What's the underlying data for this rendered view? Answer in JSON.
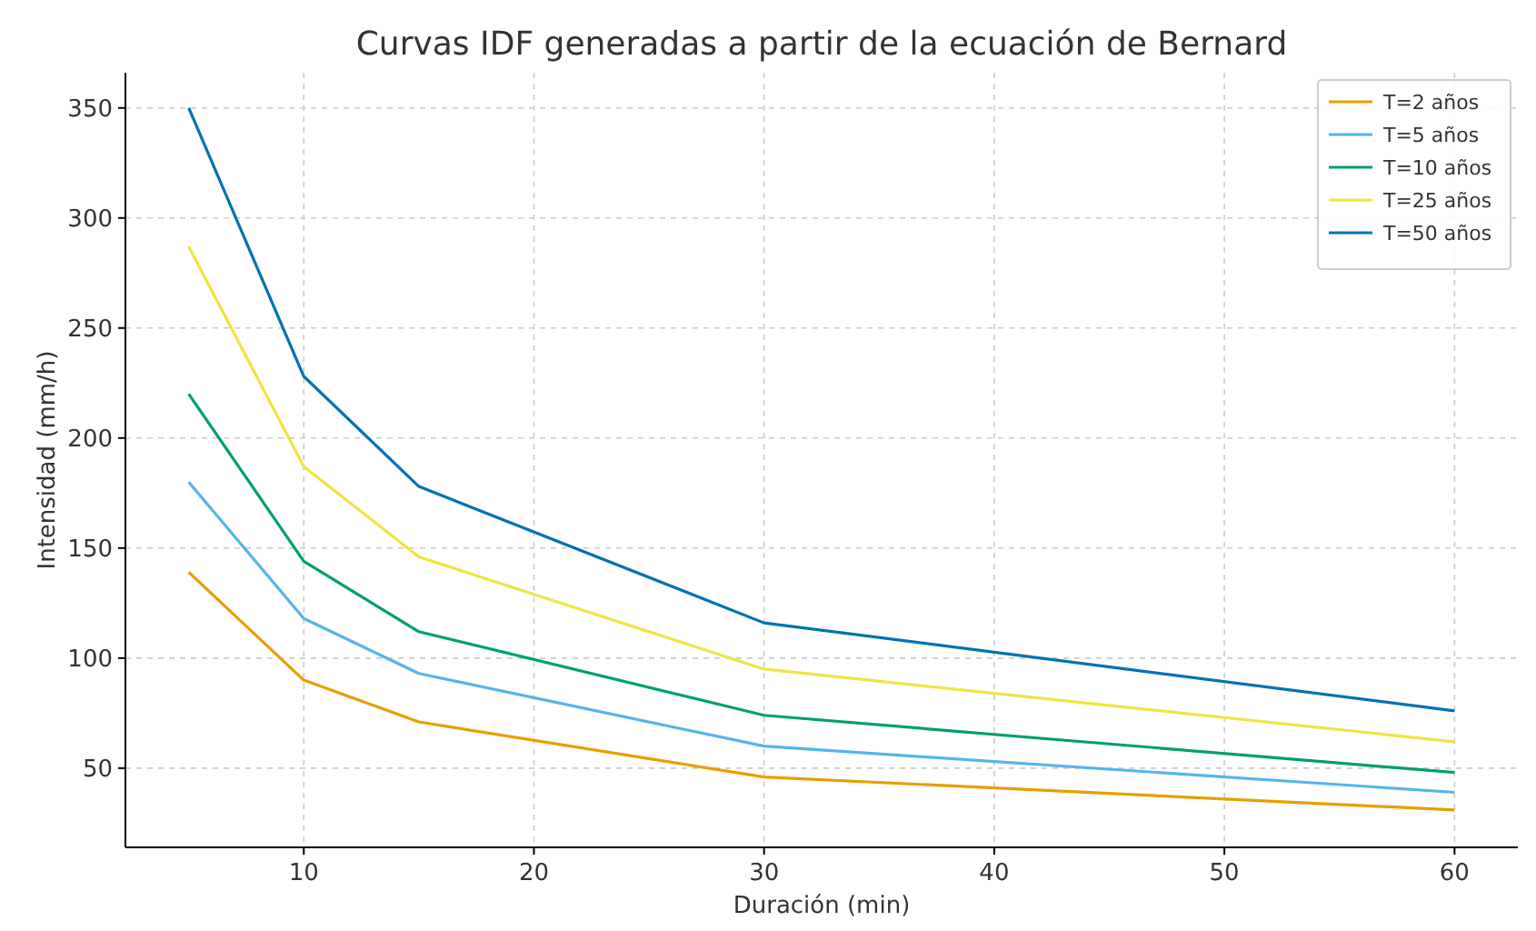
{
  "chart_data": {
    "type": "line",
    "title": "Curvas IDF generadas a partir de la ecuación de Bernard",
    "xlabel": "Duración (min)",
    "ylabel": "Intensidad (mm/h)",
    "x": [
      5,
      10,
      15,
      30,
      60
    ],
    "series": [
      {
        "name": "T=2 años",
        "color": "#e69f00",
        "values": [
          139,
          90,
          71,
          46,
          31
        ]
      },
      {
        "name": "T=5 años",
        "color": "#56b4e9",
        "values": [
          180,
          118,
          93,
          60,
          39
        ]
      },
      {
        "name": "T=10 años",
        "color": "#009e73",
        "values": [
          220,
          144,
          112,
          74,
          48
        ]
      },
      {
        "name": "T=25 años",
        "color": "#f0e442",
        "values": [
          287,
          187,
          146,
          95,
          62
        ]
      },
      {
        "name": "T=50 años",
        "color": "#0072b2",
        "values": [
          350,
          228,
          178,
          116,
          76
        ]
      }
    ],
    "xlim": [
      2.25,
      62.75
    ],
    "ylim": [
      14,
      366
    ],
    "xticks": [
      10,
      20,
      30,
      40,
      50,
      60
    ],
    "yticks": [
      50,
      100,
      150,
      200,
      250,
      300,
      350
    ],
    "grid": true,
    "legend": "top right",
    "marker": "none",
    "line_style": "solid"
  }
}
